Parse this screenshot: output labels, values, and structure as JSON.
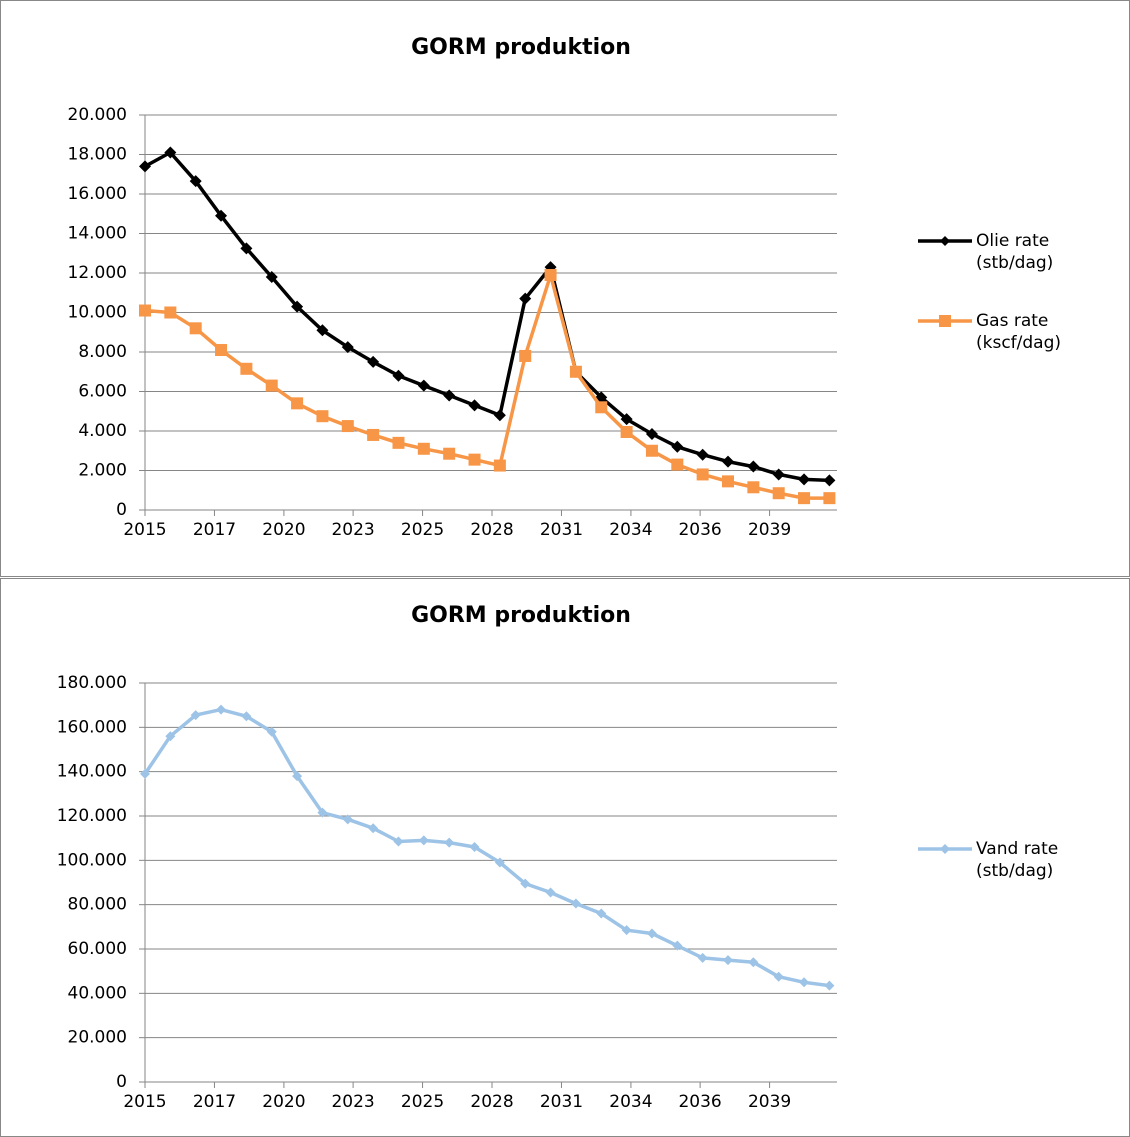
{
  "chart_data": [
    {
      "type": "line",
      "title": "GORM produktion",
      "x": [
        2015,
        2016,
        2017,
        2018,
        2019,
        2020,
        2021,
        2022,
        2023,
        2024,
        2025,
        2026,
        2027,
        2028,
        2029,
        2030,
        2031,
        2032,
        2033,
        2034,
        2035,
        2036,
        2037,
        2038,
        2039,
        2040,
        2041,
        2042
      ],
      "xlim": [
        2015,
        2042.3
      ],
      "xticks": [
        {
          "value": 2015,
          "label": "2015"
        },
        {
          "value": 2017.74,
          "label": "2017"
        },
        {
          "value": 2020.48,
          "label": "2020"
        },
        {
          "value": 2023.21,
          "label": "2023"
        },
        {
          "value": 2025.95,
          "label": "2025"
        },
        {
          "value": 2028.69,
          "label": "2028"
        },
        {
          "value": 2031.43,
          "label": "2031"
        },
        {
          "value": 2034.17,
          "label": "2034"
        },
        {
          "value": 2036.9,
          "label": "2036"
        },
        {
          "value": 2039.64,
          "label": "2039"
        }
      ],
      "ylim": [
        0,
        20000
      ],
      "yticks": [
        0,
        {
          "value": 2000,
          "label": "2.000"
        },
        {
          "value": 4000,
          "label": "4.000"
        },
        {
          "value": 6000,
          "label": "6.000"
        },
        {
          "value": 8000,
          "label": "8.000"
        },
        {
          "value": 10000,
          "label": "10.000"
        },
        {
          "value": 12000,
          "label": "12.000"
        },
        {
          "value": 14000,
          "label": "14.000"
        },
        {
          "value": 16000,
          "label": "16.000"
        },
        {
          "value": 18000,
          "label": "18.000"
        },
        {
          "value": 20000,
          "label": "20.000"
        }
      ],
      "grid": true,
      "legend": "right",
      "series": [
        {
          "name": "Olie rate (stb/dag)",
          "color": "#000000",
          "marker": "diamond",
          "values": [
            17400,
            18100,
            16650,
            14900,
            13250,
            11800,
            10300,
            9100,
            8250,
            7500,
            6800,
            6300,
            5800,
            5300,
            4800,
            10700,
            12300,
            7000,
            5700,
            4600,
            3850,
            3200,
            2800,
            2450,
            2200,
            1800,
            1550,
            1500
          ]
        },
        {
          "name": "Gas rate (kscf/dag)",
          "color": "#f79646",
          "marker": "square",
          "values": [
            10100,
            10000,
            9200,
            8100,
            7150,
            6300,
            5400,
            4750,
            4250,
            3800,
            3400,
            3100,
            2850,
            2550,
            2250,
            7800,
            11900,
            7000,
            5200,
            3950,
            3000,
            2300,
            1800,
            1450,
            1150,
            850,
            600,
            600
          ]
        }
      ]
    },
    {
      "type": "line",
      "title": "GORM produktion",
      "x": [
        2015,
        2016,
        2017,
        2018,
        2019,
        2020,
        2021,
        2022,
        2023,
        2024,
        2025,
        2026,
        2027,
        2028,
        2029,
        2030,
        2031,
        2032,
        2033,
        2034,
        2035,
        2036,
        2037,
        2038,
        2039,
        2040,
        2041,
        2042
      ],
      "xlim": [
        2015,
        2042.3
      ],
      "xticks": [
        {
          "value": 2015,
          "label": "2015"
        },
        {
          "value": 2017.74,
          "label": "2017"
        },
        {
          "value": 2020.48,
          "label": "2020"
        },
        {
          "value": 2023.21,
          "label": "2023"
        },
        {
          "value": 2025.95,
          "label": "2025"
        },
        {
          "value": 2028.69,
          "label": "2028"
        },
        {
          "value": 2031.43,
          "label": "2031"
        },
        {
          "value": 2034.17,
          "label": "2034"
        },
        {
          "value": 2036.9,
          "label": "2036"
        },
        {
          "value": 2039.64,
          "label": "2039"
        }
      ],
      "ylim": [
        0,
        180000
      ],
      "yticks": [
        0,
        {
          "value": 20000,
          "label": "20.000"
        },
        {
          "value": 40000,
          "label": "40.000"
        },
        {
          "value": 60000,
          "label": "60.000"
        },
        {
          "value": 80000,
          "label": "80.000"
        },
        {
          "value": 100000,
          "label": "100.000"
        },
        {
          "value": 120000,
          "label": "120.000"
        },
        {
          "value": 140000,
          "label": "140.000"
        },
        {
          "value": 160000,
          "label": "160.000"
        },
        {
          "value": 180000,
          "label": "180.000"
        }
      ],
      "grid": true,
      "legend": "right",
      "series": [
        {
          "name": "Vand rate (stb/dag)",
          "color": "#9dc3e6",
          "marker": "diamond",
          "values": [
            139000,
            156000,
            165500,
            168000,
            165000,
            158000,
            138000,
            121500,
            118500,
            114500,
            108500,
            109000,
            108000,
            106000,
            99000,
            89500,
            85500,
            80500,
            76000,
            68500,
            67000,
            61500,
            56000,
            55000,
            54000,
            47500,
            45000,
            43500
          ]
        }
      ]
    }
  ]
}
